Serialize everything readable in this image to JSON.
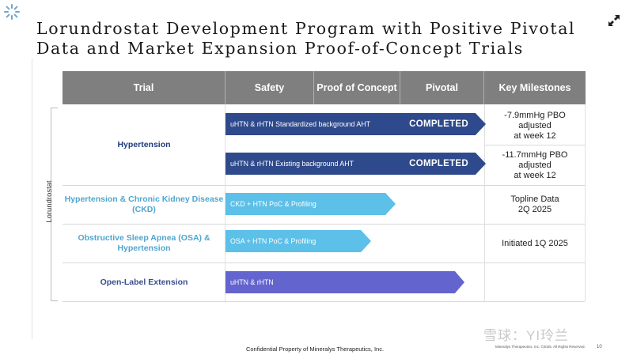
{
  "title": {
    "line1": "Lorundrostat Development Program with Positive Pivotal",
    "line2": "Data and Market Expansion Proof-of-Concept Trials"
  },
  "headers": [
    "Trial",
    "Safety",
    "Proof of Concept",
    "Pivotal",
    "Key Milestones"
  ],
  "side_label": "Lorundrostat",
  "rows": [
    {
      "trial": "Hypertension",
      "bars": [
        {
          "label": "uHTN & rHTN Standardized background AHT",
          "status": "COMPLETED",
          "color": "#2e4a8c",
          "milestone": [
            "-7.9mmHg PBO",
            "adjusted",
            "at week 12"
          ]
        },
        {
          "label": "uHTN & rHTN Existing background AHT",
          "status": "COMPLETED",
          "color": "#2e4a8c",
          "milestone": [
            "-11.7mmHg PBO",
            "adjusted",
            "at week 12"
          ]
        }
      ],
      "color": "#1f3b7a"
    },
    {
      "trial": [
        "Hypertension & Chronic Kidney Disease",
        "(CKD)"
      ],
      "bar": "CKD + HTN PoC & Profiling",
      "color": "#4fa6cf",
      "bar_color": "#5cc0e8",
      "milestone": [
        "Topline Data",
        "2Q 2025"
      ]
    },
    {
      "trial": [
        "Obstructive Sleep Apnea (OSA) &",
        "Hypertension"
      ],
      "bar": "OSA + HTN PoC & Profiling",
      "color": "#4fa6cf",
      "bar_color": "#5cc0e8",
      "milestone": [
        "Initiated 1Q 2025"
      ]
    },
    {
      "trial": "Open-Label Extension",
      "bar": "uHTN & rHTN",
      "color": "#3a4d8f",
      "bar_color": "#6464cf",
      "milestone": []
    }
  ],
  "footer": "Confidential Property of Mineralys Therapeutics, Inc.",
  "footer_small": "Mineralys Therapeutics, Inc. ©2025. All Rights Reserved.",
  "page_number": "10",
  "watermark": "雪球：YI玲兰",
  "icons": {
    "logo": "snowflake-logo-icon",
    "expand": "expand-arrows-icon"
  }
}
